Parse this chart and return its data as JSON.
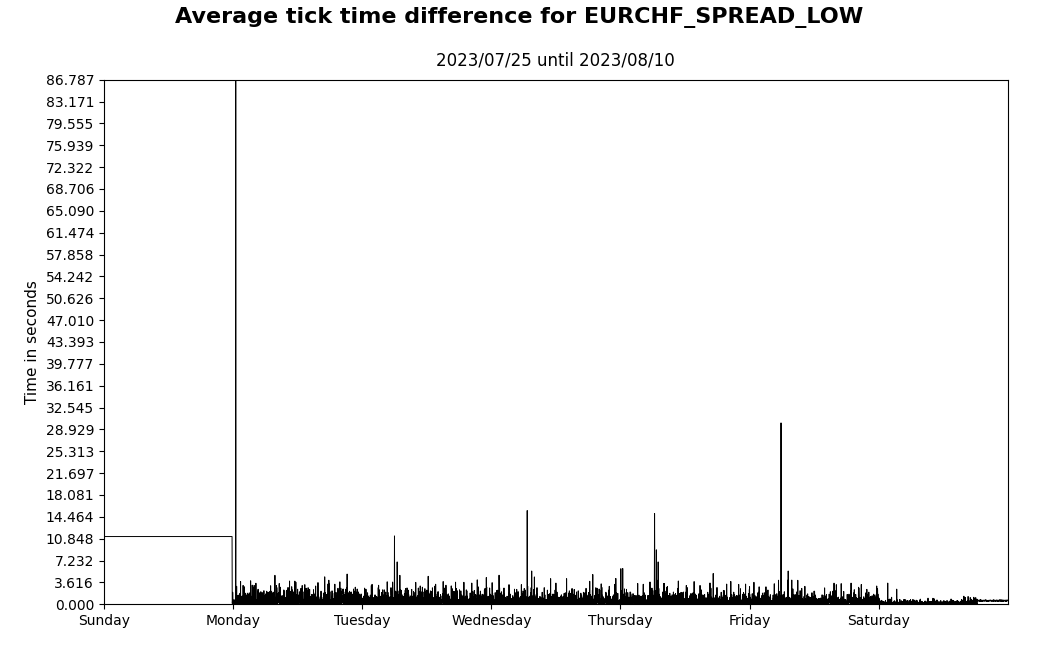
{
  "title": "Average tick time difference for EURCHF_SPREAD_LOW",
  "subtitle": "2023/07/25 until 2023/08/10",
  "xlabel": "",
  "ylabel": "Time in seconds",
  "yticks": [
    0.0,
    3.616,
    7.232,
    10.848,
    14.464,
    18.081,
    21.697,
    25.313,
    28.929,
    32.545,
    36.161,
    39.777,
    43.393,
    47.01,
    50.626,
    54.242,
    57.858,
    61.474,
    65.09,
    68.706,
    72.322,
    75.939,
    79.555,
    83.171,
    86.787
  ],
  "xtick_labels": [
    "Sunday",
    "Monday",
    "Tuesday",
    "Wednesday",
    "Thursday",
    "Friday",
    "Saturday"
  ],
  "xtick_positions": [
    0,
    1,
    2,
    3,
    4,
    5,
    6
  ],
  "ymin": 0.0,
  "ymax": 86.787,
  "line_color": "#000000",
  "line_width": 0.7,
  "background_color": "#ffffff",
  "title_fontsize": 16,
  "subtitle_fontsize": 12,
  "ylabel_fontsize": 11,
  "tick_fontsize": 10
}
